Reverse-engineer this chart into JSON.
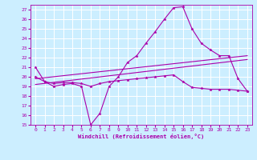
{
  "background_color": "#cceeff",
  "grid_color": "#ffffff",
  "line_color": "#aa00aa",
  "marker": "*",
  "xlabel": "Windchill (Refroidissement éolien,°C)",
  "xlim": [
    -0.5,
    23.5
  ],
  "ylim": [
    15,
    27.5
  ],
  "yticks": [
    15,
    16,
    17,
    18,
    19,
    20,
    21,
    22,
    23,
    24,
    25,
    26,
    27
  ],
  "xticks": [
    0,
    1,
    2,
    3,
    4,
    5,
    6,
    7,
    8,
    9,
    10,
    11,
    12,
    13,
    14,
    15,
    16,
    17,
    18,
    19,
    20,
    21,
    22,
    23
  ],
  "series": [
    {
      "x": [
        0,
        1,
        2,
        3,
        4,
        5,
        6,
        7,
        8,
        9,
        10,
        11,
        12,
        13,
        14,
        15,
        16,
        17,
        18,
        19,
        20,
        21,
        22,
        23
      ],
      "y": [
        21.0,
        19.5,
        19.0,
        19.2,
        19.3,
        19.0,
        15.0,
        16.2,
        19.0,
        20.0,
        21.5,
        22.2,
        23.5,
        24.7,
        26.0,
        27.2,
        27.3,
        25.0,
        23.5,
        22.8,
        22.2,
        22.2,
        19.8,
        18.5
      ],
      "has_marker": true
    },
    {
      "x": [
        0,
        1,
        2,
        3,
        4,
        5,
        6,
        7,
        8,
        9,
        10,
        11,
        12,
        13,
        14,
        15,
        16,
        17,
        18,
        19,
        20,
        21,
        22,
        23
      ],
      "y": [
        20.0,
        19.5,
        19.3,
        19.4,
        19.4,
        19.3,
        19.0,
        19.3,
        19.5,
        19.6,
        19.7,
        19.8,
        19.9,
        20.0,
        20.1,
        20.2,
        19.5,
        18.9,
        18.8,
        18.7,
        18.7,
        18.7,
        18.6,
        18.5
      ],
      "has_marker": true
    },
    {
      "x": [
        0,
        23
      ],
      "y": [
        19.2,
        21.8
      ],
      "has_marker": false
    },
    {
      "x": [
        0,
        23
      ],
      "y": [
        19.8,
        22.2
      ],
      "has_marker": false
    }
  ]
}
